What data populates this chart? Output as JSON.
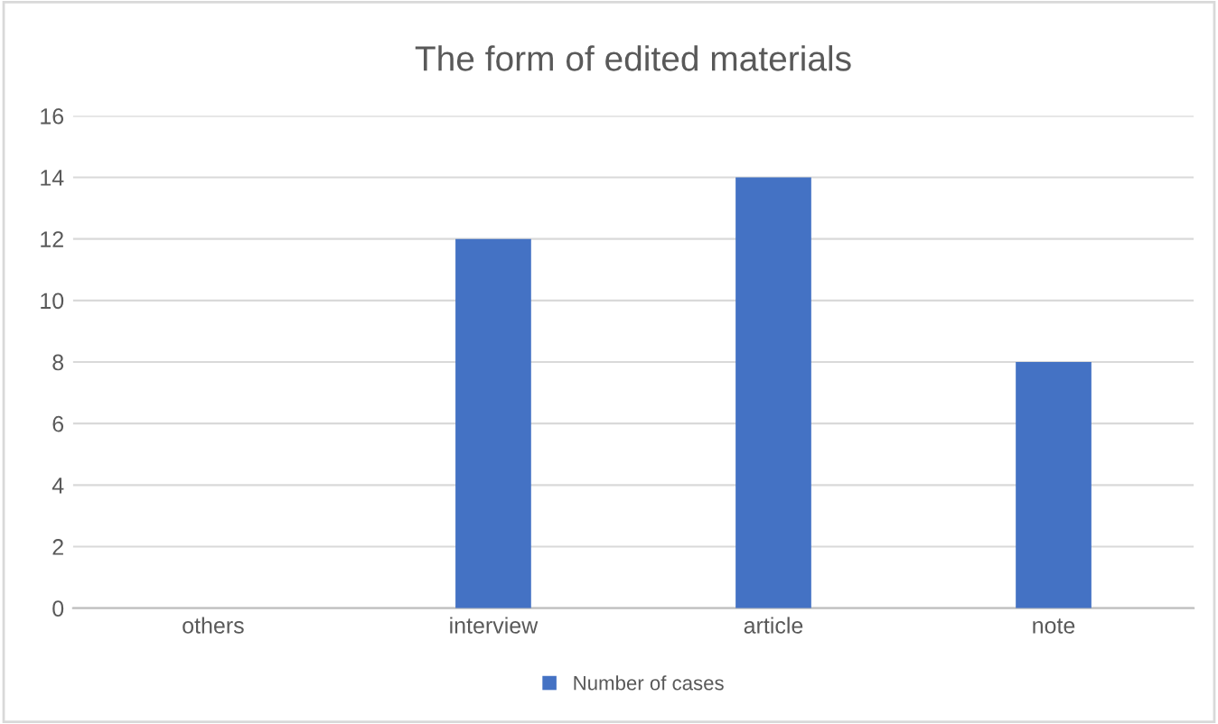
{
  "chart_data": {
    "type": "bar",
    "title": "The form of edited materials",
    "categories": [
      "others",
      "interview",
      "article",
      "note"
    ],
    "series": [
      {
        "name": "Number of cases",
        "color": "#4472c4",
        "values": [
          0,
          12,
          14,
          8
        ]
      }
    ],
    "ylim": [
      0,
      16
    ],
    "yticks": [
      0,
      2,
      4,
      6,
      8,
      10,
      12,
      14,
      16
    ],
    "grid": "y",
    "legend": "bottom"
  }
}
